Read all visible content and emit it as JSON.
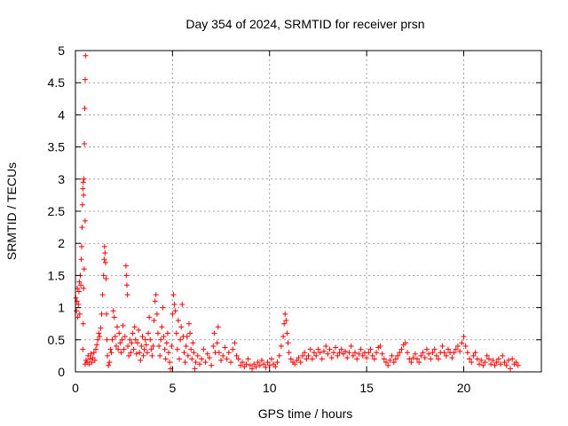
{
  "chart_data": {
    "type": "scatter",
    "title": "Day 354 of 2024, SRMTID for receiver prsn",
    "xlabel": "GPS time / hours",
    "ylabel": "SRMTID / TECUs",
    "xlim": [
      0,
      24
    ],
    "ylim": [
      0,
      5
    ],
    "x_ticks": [
      0,
      5,
      10,
      15,
      20
    ],
    "x_tick_labels": [
      "0",
      "5",
      "10",
      "15",
      "20"
    ],
    "y_ticks": [
      0,
      0.5,
      1,
      1.5,
      2,
      2.5,
      3,
      3.5,
      4,
      4.5,
      5
    ],
    "y_tick_labels": [
      "0",
      "0.5",
      "1",
      "1.5",
      "2",
      "2.5",
      "3",
      "3.5",
      "4",
      "4.5",
      "5"
    ],
    "grid": true,
    "marker": "+",
    "series": [
      {
        "name": "SRMTID",
        "color": "#ff0000",
        "points": [
          [
            0.02,
            1.15
          ],
          [
            0.05,
            0.95
          ],
          [
            0.08,
            1.1
          ],
          [
            0.1,
            1.3
          ],
          [
            0.12,
            0.85
          ],
          [
            0.15,
            1.05
          ],
          [
            0.18,
            1.25
          ],
          [
            0.2,
            1.4
          ],
          [
            0.22,
            0.9
          ],
          [
            0.25,
            1.5
          ],
          [
            0.28,
            1.35
          ],
          [
            0.3,
            1.75
          ],
          [
            0.32,
            1.95
          ],
          [
            0.34,
            2.25
          ],
          [
            0.36,
            2.6
          ],
          [
            0.38,
            2.85
          ],
          [
            0.4,
            2.95
          ],
          [
            0.42,
            2.75
          ],
          [
            0.44,
            3.0
          ],
          [
            0.46,
            3.55
          ],
          [
            0.48,
            4.1
          ],
          [
            0.5,
            4.55
          ],
          [
            0.52,
            4.92
          ],
          [
            0.5,
            2.35
          ],
          [
            0.45,
            1.6
          ],
          [
            0.42,
            1.3
          ],
          [
            0.4,
            0.75
          ],
          [
            0.38,
            0.35
          ],
          [
            0.5,
            0.12
          ],
          [
            0.55,
            0.18
          ],
          [
            0.6,
            0.15
          ],
          [
            0.65,
            0.25
          ],
          [
            0.7,
            0.12
          ],
          [
            0.75,
            0.2
          ],
          [
            0.8,
            0.28
          ],
          [
            0.85,
            0.15
          ],
          [
            0.9,
            0.22
          ],
          [
            0.95,
            0.3
          ],
          [
            1.0,
            0.18
          ],
          [
            1.05,
            0.35
          ],
          [
            1.1,
            0.42
          ],
          [
            1.15,
            0.5
          ],
          [
            1.2,
            0.6
          ],
          [
            1.25,
            0.55
          ],
          [
            1.3,
            0.68
          ],
          [
            1.35,
            0.9
          ],
          [
            1.4,
            1.2
          ],
          [
            1.45,
            1.5
          ],
          [
            1.48,
            1.75
          ],
          [
            1.5,
            1.95
          ],
          [
            1.52,
            1.85
          ],
          [
            1.55,
            1.7
          ],
          [
            1.58,
            1.45
          ],
          [
            1.6,
            0.9
          ],
          [
            1.62,
            0.5
          ],
          [
            1.65,
            0.25
          ],
          [
            1.7,
            0.1
          ],
          [
            1.75,
            0.15
          ],
          [
            1.8,
            0.35
          ],
          [
            1.85,
            0.3
          ],
          [
            1.9,
            0.5
          ],
          [
            1.95,
            0.95
          ],
          [
            2.0,
            0.85
          ],
          [
            2.05,
            0.55
          ],
          [
            2.1,
            0.4
          ],
          [
            2.15,
            0.7
          ],
          [
            2.2,
            0.35
          ],
          [
            2.25,
            0.6
          ],
          [
            2.3,
            0.45
          ],
          [
            2.35,
            0.3
          ],
          [
            2.4,
            0.5
          ],
          [
            2.45,
            0.72
          ],
          [
            2.5,
            0.35
          ],
          [
            2.55,
            0.55
          ],
          [
            2.6,
            1.65
          ],
          [
            2.62,
            1.5
          ],
          [
            2.65,
            1.35
          ],
          [
            2.68,
            1.2
          ],
          [
            2.7,
            0.4
          ],
          [
            2.75,
            0.25
          ],
          [
            2.8,
            0.5
          ],
          [
            2.85,
            0.3
          ],
          [
            2.9,
            0.45
          ],
          [
            2.95,
            0.6
          ],
          [
            3.0,
            0.35
          ],
          [
            3.05,
            0.7
          ],
          [
            3.1,
            0.5
          ],
          [
            3.15,
            0.28
          ],
          [
            3.2,
            0.45
          ],
          [
            3.25,
            0.65
          ],
          [
            3.3,
            0.3
          ],
          [
            3.35,
            0.18
          ],
          [
            3.4,
            0.4
          ],
          [
            3.45,
            0.55
          ],
          [
            3.5,
            0.25
          ],
          [
            3.55,
            0.35
          ],
          [
            3.6,
            0.5
          ],
          [
            3.65,
            0.42
          ],
          [
            3.7,
            0.3
          ],
          [
            3.75,
            0.6
          ],
          [
            3.8,
            0.85
          ],
          [
            3.85,
            0.5
          ],
          [
            3.9,
            0.35
          ],
          [
            3.95,
            0.25
          ],
          [
            4.0,
            0.4
          ],
          [
            4.05,
            0.8
          ],
          [
            4.1,
            1.1
          ],
          [
            4.15,
            1.2
          ],
          [
            4.2,
            0.9
          ],
          [
            4.25,
            0.6
          ],
          [
            4.3,
            0.4
          ],
          [
            4.35,
            0.25
          ],
          [
            4.4,
            0.5
          ],
          [
            4.45,
            0.7
          ],
          [
            4.5,
            1.0
          ],
          [
            4.55,
            0.55
          ],
          [
            4.6,
            0.35
          ],
          [
            4.65,
            0.2
          ],
          [
            4.7,
            0.45
          ],
          [
            4.75,
            0.6
          ],
          [
            4.8,
            0.3
          ],
          [
            4.85,
            0.15
          ],
          [
            4.9,
            0.05
          ],
          [
            4.95,
            0.4
          ],
          [
            5.0,
            0.9
          ],
          [
            5.05,
            1.2
          ],
          [
            5.1,
            1.05
          ],
          [
            5.15,
            0.95
          ],
          [
            5.2,
            0.6
          ],
          [
            5.25,
            0.35
          ],
          [
            5.3,
            0.8
          ],
          [
            5.35,
            0.2
          ],
          [
            5.4,
            0.5
          ],
          [
            5.45,
            0.7
          ],
          [
            5.5,
            1.05
          ],
          [
            5.55,
            0.55
          ],
          [
            5.6,
            0.3
          ],
          [
            5.65,
            0.15
          ],
          [
            5.7,
            0.4
          ],
          [
            5.75,
            0.55
          ],
          [
            5.8,
            0.25
          ],
          [
            5.85,
            0.75
          ],
          [
            5.9,
            0.6
          ],
          [
            5.95,
            0.35
          ],
          [
            6.0,
            0.2
          ],
          [
            6.05,
            0.45
          ],
          [
            6.1,
            0.3
          ],
          [
            6.15,
            0.05
          ],
          [
            6.2,
            0.15
          ],
          [
            6.3,
            0.25
          ],
          [
            6.4,
            0.12
          ],
          [
            6.5,
            0.2
          ],
          [
            6.6,
            0.35
          ],
          [
            6.7,
            0.15
          ],
          [
            6.8,
            0.28
          ],
          [
            6.9,
            0.22
          ],
          [
            7.0,
            0.1
          ],
          [
            7.1,
            0.4
          ],
          [
            7.15,
            0.6
          ],
          [
            7.2,
            0.3
          ],
          [
            7.3,
            0.45
          ],
          [
            7.35,
            0.7
          ],
          [
            7.4,
            0.3
          ],
          [
            7.5,
            0.18
          ],
          [
            7.6,
            0.25
          ],
          [
            7.7,
            0.38
          ],
          [
            7.8,
            0.2
          ],
          [
            7.9,
            0.3
          ],
          [
            8.0,
            0.15
          ],
          [
            8.1,
            0.35
          ],
          [
            8.2,
            0.45
          ],
          [
            8.3,
            0.25
          ],
          [
            8.4,
            0.2
          ],
          [
            8.5,
            0.1
          ],
          [
            8.6,
            0.15
          ],
          [
            8.7,
            0.08
          ],
          [
            8.8,
            0.12
          ],
          [
            8.9,
            0.2
          ],
          [
            9.0,
            0.1
          ],
          [
            9.1,
            0.05
          ],
          [
            9.2,
            0.12
          ],
          [
            9.3,
            0.08
          ],
          [
            9.4,
            0.15
          ],
          [
            9.5,
            0.1
          ],
          [
            9.6,
            0.18
          ],
          [
            9.7,
            0.12
          ],
          [
            9.8,
            0.07
          ],
          [
            9.9,
            0.15
          ],
          [
            10.0,
            0.1
          ],
          [
            10.1,
            0.2
          ],
          [
            10.2,
            0.12
          ],
          [
            10.3,
            0.08
          ],
          [
            10.4,
            0.15
          ],
          [
            10.5,
            0.25
          ],
          [
            10.6,
            0.4
          ],
          [
            10.7,
            0.55
          ],
          [
            10.75,
            0.75
          ],
          [
            10.8,
            0.9
          ],
          [
            10.85,
            0.8
          ],
          [
            10.9,
            0.6
          ],
          [
            10.95,
            0.45
          ],
          [
            11.0,
            0.3
          ],
          [
            11.1,
            0.2
          ],
          [
            11.2,
            0.15
          ],
          [
            11.3,
            0.12
          ],
          [
            11.4,
            0.18
          ],
          [
            11.5,
            0.22
          ],
          [
            11.6,
            0.15
          ],
          [
            11.7,
            0.25
          ],
          [
            11.8,
            0.3
          ],
          [
            11.9,
            0.2
          ],
          [
            12.0,
            0.25
          ],
          [
            12.1,
            0.35
          ],
          [
            12.2,
            0.2
          ],
          [
            12.3,
            0.3
          ],
          [
            12.4,
            0.25
          ],
          [
            12.5,
            0.35
          ],
          [
            12.6,
            0.3
          ],
          [
            12.7,
            0.2
          ],
          [
            12.8,
            0.32
          ],
          [
            12.9,
            0.4
          ],
          [
            13.0,
            0.28
          ],
          [
            13.1,
            0.35
          ],
          [
            13.2,
            0.22
          ],
          [
            13.3,
            0.3
          ],
          [
            13.4,
            0.38
          ],
          [
            13.5,
            0.25
          ],
          [
            13.6,
            0.3
          ],
          [
            13.7,
            0.35
          ],
          [
            13.8,
            0.28
          ],
          [
            13.9,
            0.32
          ],
          [
            14.0,
            0.22
          ],
          [
            14.1,
            0.3
          ],
          [
            14.2,
            0.4
          ],
          [
            14.3,
            0.25
          ],
          [
            14.4,
            0.3
          ],
          [
            14.5,
            0.2
          ],
          [
            14.6,
            0.28
          ],
          [
            14.7,
            0.35
          ],
          [
            14.8,
            0.25
          ],
          [
            14.9,
            0.3
          ],
          [
            15.0,
            0.22
          ],
          [
            15.1,
            0.3
          ],
          [
            15.2,
            0.35
          ],
          [
            15.3,
            0.25
          ],
          [
            15.4,
            0.2
          ],
          [
            15.5,
            0.3
          ],
          [
            15.6,
            0.38
          ],
          [
            15.7,
            0.4
          ],
          [
            15.8,
            0.28
          ],
          [
            15.9,
            0.2
          ],
          [
            16.0,
            0.15
          ],
          [
            16.1,
            0.1
          ],
          [
            16.2,
            0.18
          ],
          [
            16.3,
            0.25
          ],
          [
            16.4,
            0.15
          ],
          [
            16.5,
            0.2
          ],
          [
            16.6,
            0.25
          ],
          [
            16.7,
            0.3
          ],
          [
            16.8,
            0.35
          ],
          [
            16.9,
            0.42
          ],
          [
            17.0,
            0.45
          ],
          [
            17.1,
            0.3
          ],
          [
            17.2,
            0.2
          ],
          [
            17.3,
            0.15
          ],
          [
            17.4,
            0.22
          ],
          [
            17.5,
            0.28
          ],
          [
            17.6,
            0.2
          ],
          [
            17.7,
            0.15
          ],
          [
            17.8,
            0.25
          ],
          [
            17.9,
            0.3
          ],
          [
            18.0,
            0.22
          ],
          [
            18.1,
            0.35
          ],
          [
            18.2,
            0.28
          ],
          [
            18.3,
            0.2
          ],
          [
            18.4,
            0.3
          ],
          [
            18.5,
            0.35
          ],
          [
            18.6,
            0.25
          ],
          [
            18.7,
            0.2
          ],
          [
            18.8,
            0.3
          ],
          [
            18.9,
            0.4
          ],
          [
            19.0,
            0.3
          ],
          [
            19.1,
            0.25
          ],
          [
            19.2,
            0.35
          ],
          [
            19.3,
            0.3
          ],
          [
            19.4,
            0.22
          ],
          [
            19.5,
            0.3
          ],
          [
            19.6,
            0.35
          ],
          [
            19.7,
            0.4
          ],
          [
            19.8,
            0.32
          ],
          [
            19.9,
            0.45
          ],
          [
            20.0,
            0.55
          ],
          [
            20.1,
            0.4
          ],
          [
            20.2,
            0.3
          ],
          [
            20.3,
            0.2
          ],
          [
            20.4,
            0.15
          ],
          [
            20.5,
            0.25
          ],
          [
            20.6,
            0.3
          ],
          [
            20.7,
            0.2
          ],
          [
            20.8,
            0.12
          ],
          [
            20.9,
            0.18
          ],
          [
            21.0,
            0.1
          ],
          [
            21.1,
            0.15
          ],
          [
            21.2,
            0.25
          ],
          [
            21.3,
            0.2
          ],
          [
            21.4,
            0.12
          ],
          [
            21.5,
            0.18
          ],
          [
            21.6,
            0.1
          ],
          [
            21.7,
            0.15
          ],
          [
            21.8,
            0.2
          ],
          [
            21.9,
            0.12
          ],
          [
            22.0,
            0.25
          ],
          [
            22.1,
            0.15
          ],
          [
            22.2,
            0.1
          ],
          [
            22.3,
            0.18
          ],
          [
            22.4,
            0.05
          ],
          [
            22.5,
            0.2
          ],
          [
            22.6,
            0.12
          ],
          [
            22.7,
            0.15
          ],
          [
            22.8,
            0.1
          ]
        ]
      }
    ]
  }
}
